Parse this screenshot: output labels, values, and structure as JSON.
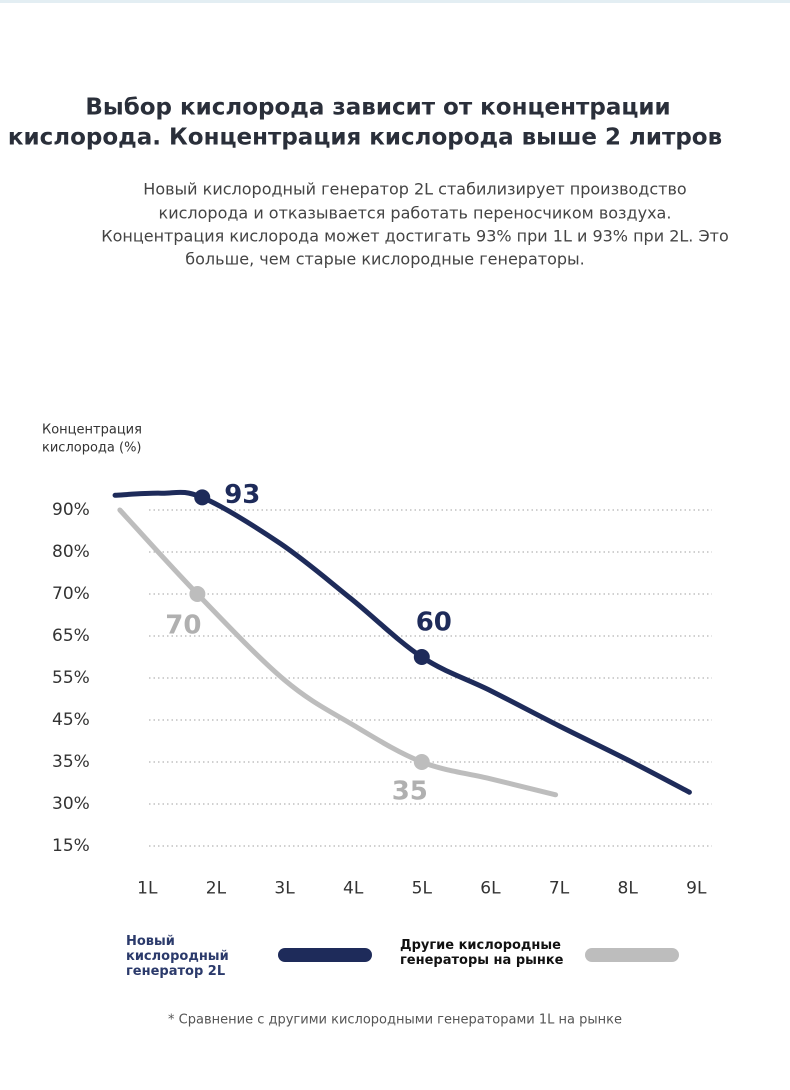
{
  "chart_data": {
    "type": "line",
    "title": [
      "Выбор кислорода зависит от концентрации",
      "кислорода. Концентрация кислорода выше 2 литров"
    ],
    "subtitle": [
      "Новый кислородный генератор 2L стабилизирует производство",
      "кислорода и отказывается работать переносчиком воздуха.",
      "Концентрация кислорода может достигать 93% при 1L и 93% при 2L. Это",
      "больше, чем старые кислородные генераторы."
    ],
    "ylabel": [
      "Концентрация",
      "кислорода (%)"
    ],
    "xlim": [
      0.5,
      9.2
    ],
    "xticks": [
      {
        "value": 1,
        "label": "1L"
      },
      {
        "value": 2,
        "label": "2L"
      },
      {
        "value": 3,
        "label": "3L"
      },
      {
        "value": 4,
        "label": "4L"
      },
      {
        "value": 5,
        "label": "5L"
      },
      {
        "value": 6,
        "label": "6L"
      },
      {
        "value": 7,
        "label": "7L"
      },
      {
        "value": 8,
        "label": "8L"
      },
      {
        "value": 9,
        "label": "9L"
      }
    ],
    "ylim": [
      12,
      97
    ],
    "yticks": [
      {
        "value": 90,
        "label": "90%"
      },
      {
        "value": 80,
        "label": "80%"
      },
      {
        "value": 70,
        "label": "70%"
      },
      {
        "value": 65,
        "label": "65%"
      },
      {
        "value": 55,
        "label": "55%"
      },
      {
        "value": 45,
        "label": "45%"
      },
      {
        "value": 35,
        "label": "35%"
      },
      {
        "value": 30,
        "label": "30%"
      },
      {
        "value": 15,
        "label": "15%"
      }
    ],
    "grid": true,
    "series": [
      {
        "name": "Новый кислородный генератор 2L",
        "color": "#1e2b5a",
        "x": [
          0.53,
          1.2,
          1.8,
          2.94,
          3.96,
          5,
          6,
          7,
          8,
          8.9
        ],
        "values": [
          93.5,
          94,
          93,
          82,
          69.5,
          60,
          52,
          43.6,
          35.5,
          31.4
        ],
        "value_labels": [
          null,
          null,
          "93",
          null,
          null,
          "60",
          null,
          null,
          null,
          null
        ]
      },
      {
        "name": "Другие кислородные генераторы на рынке",
        "color": "#bdbdbd",
        "x": [
          0.6,
          1.73,
          3,
          4,
          5,
          6,
          6.95
        ],
        "values": [
          90,
          70,
          54.5,
          43.8,
          35,
          33,
          31.1
        ],
        "value_labels": [
          null,
          "70",
          null,
          null,
          "35",
          null,
          null
        ]
      }
    ],
    "footnote": "* Сравнение с другими кислородными генераторами 1L на рынке"
  }
}
